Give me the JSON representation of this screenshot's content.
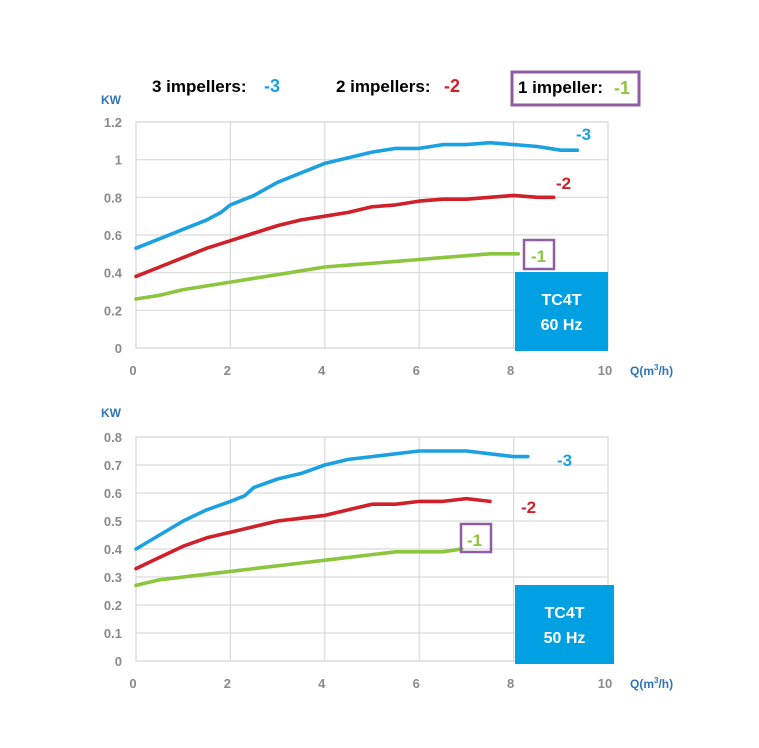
{
  "legend": [
    {
      "label": "3 impellers:",
      "suffix": "-3",
      "color": "#1ba1e2",
      "boxed": false
    },
    {
      "label": "2 impellers:",
      "suffix": "-2",
      "color": "#d0202a",
      "boxed": false
    },
    {
      "label": "1 impeller:",
      "suffix": "-1",
      "color": "#8cc63f",
      "boxed": true,
      "box_color": "#8e5ea2"
    }
  ],
  "chart_data": [
    {
      "type": "line",
      "ylabel": "KW",
      "xlabel": "Q(m³/h)",
      "xlabel_prefix": "Q(m",
      "xlabel_sup": "3",
      "xlabel_suffix": "/h)",
      "xlim": [
        0,
        10
      ],
      "ylim": [
        0,
        1.2
      ],
      "xticks": [
        "0",
        "2",
        "4",
        "6",
        "8",
        "10"
      ],
      "yticks": [
        "0",
        "0.2",
        "0.4",
        "0.6",
        "0.8",
        "1",
        "1.2"
      ],
      "badge": {
        "line1": "TC4T",
        "line2": "60 Hz",
        "color": "#00a0e3"
      },
      "series": [
        {
          "name": "-3",
          "color": "#1ba1e2",
          "boxed": false,
          "x": [
            0,
            0.5,
            1,
            1.5,
            1.8,
            2,
            2.5,
            3,
            3.5,
            4,
            4.5,
            5,
            5.5,
            6,
            6.5,
            7,
            7.5,
            8,
            8.5,
            9,
            9.35
          ],
          "y": [
            0.53,
            0.58,
            0.63,
            0.68,
            0.72,
            0.76,
            0.81,
            0.88,
            0.93,
            0.98,
            1.01,
            1.04,
            1.06,
            1.06,
            1.08,
            1.08,
            1.09,
            1.08,
            1.07,
            1.05,
            1.05
          ]
        },
        {
          "name": "-2",
          "color": "#d0202a",
          "boxed": false,
          "x": [
            0,
            0.5,
            1,
            1.5,
            2,
            2.5,
            3,
            3.5,
            4,
            4.5,
            5,
            5.5,
            6,
            6.5,
            7,
            7.5,
            8,
            8.5,
            8.85
          ],
          "y": [
            0.38,
            0.43,
            0.48,
            0.53,
            0.57,
            0.61,
            0.65,
            0.68,
            0.7,
            0.72,
            0.75,
            0.76,
            0.78,
            0.79,
            0.79,
            0.8,
            0.81,
            0.8,
            0.8
          ]
        },
        {
          "name": "-1",
          "color": "#8cc63f",
          "boxed": true,
          "x": [
            0,
            0.5,
            1,
            1.5,
            2,
            2.5,
            3,
            3.5,
            4,
            4.5,
            5,
            5.5,
            6,
            6.5,
            7,
            7.5,
            8.1
          ],
          "y": [
            0.26,
            0.28,
            0.31,
            0.33,
            0.35,
            0.37,
            0.39,
            0.41,
            0.43,
            0.44,
            0.45,
            0.46,
            0.47,
            0.48,
            0.49,
            0.5,
            0.5
          ]
        }
      ]
    },
    {
      "type": "line",
      "ylabel": "KW",
      "xlabel": "Q(m³/h)",
      "xlabel_prefix": "Q(m",
      "xlabel_sup": "3",
      "xlabel_suffix": "/h)",
      "xlim": [
        0,
        10
      ],
      "ylim": [
        0,
        0.8
      ],
      "xticks": [
        "0",
        "2",
        "4",
        "6",
        "8",
        "10"
      ],
      "yticks": [
        "0",
        "0.1",
        "0.2",
        "0.3",
        "0.4",
        "0.5",
        "0.6",
        "0.7",
        "0.8"
      ],
      "badge": {
        "line1": "TC4T",
        "line2": "50 Hz",
        "color": "#00a0e3"
      },
      "series": [
        {
          "name": "-3",
          "color": "#1ba1e2",
          "boxed": false,
          "x": [
            0,
            0.5,
            1,
            1.5,
            2,
            2.3,
            2.5,
            3,
            3.5,
            4,
            4.5,
            5,
            5.5,
            6,
            6.5,
            7,
            7.5,
            8,
            8.3
          ],
          "y": [
            0.4,
            0.45,
            0.5,
            0.54,
            0.57,
            0.59,
            0.62,
            0.65,
            0.67,
            0.7,
            0.72,
            0.73,
            0.74,
            0.75,
            0.75,
            0.75,
            0.74,
            0.73,
            0.73
          ]
        },
        {
          "name": "-2",
          "color": "#d0202a",
          "boxed": false,
          "x": [
            0,
            0.5,
            1,
            1.5,
            2,
            2.5,
            3,
            3.5,
            4,
            4.5,
            5,
            5.5,
            6,
            6.5,
            7,
            7.5
          ],
          "y": [
            0.33,
            0.37,
            0.41,
            0.44,
            0.46,
            0.48,
            0.5,
            0.51,
            0.52,
            0.54,
            0.56,
            0.56,
            0.57,
            0.57,
            0.58,
            0.57
          ]
        },
        {
          "name": "-1",
          "color": "#8cc63f",
          "boxed": true,
          "x": [
            0,
            0.5,
            1,
            1.5,
            2,
            2.5,
            3,
            3.5,
            4,
            4.5,
            5,
            5.5,
            6,
            6.5,
            6.9
          ],
          "y": [
            0.27,
            0.29,
            0.3,
            0.31,
            0.32,
            0.33,
            0.34,
            0.35,
            0.36,
            0.37,
            0.38,
            0.39,
            0.39,
            0.39,
            0.4
          ]
        }
      ]
    }
  ]
}
